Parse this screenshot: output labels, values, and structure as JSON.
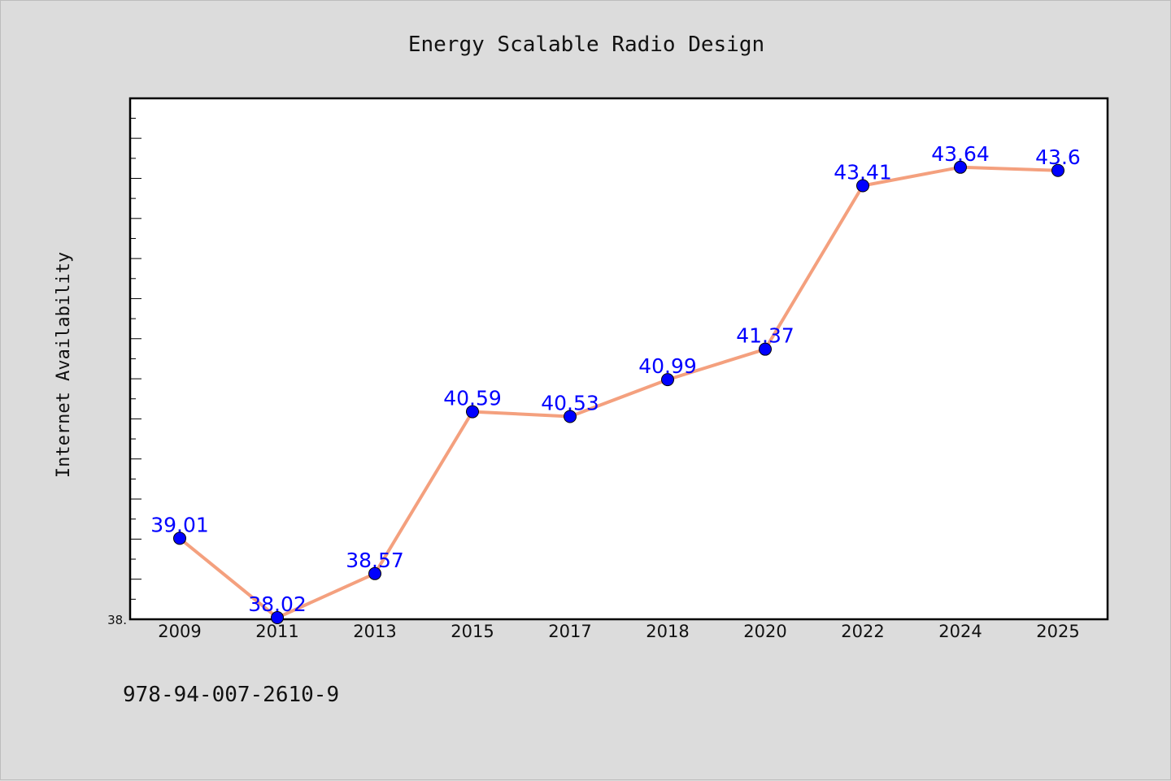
{
  "chart_data": {
    "type": "line",
    "title": "Energy Scalable Radio Design",
    "xlabel": "",
    "ylabel": "Internet Availability",
    "categories": [
      "2009",
      "2011",
      "2013",
      "2015",
      "2017",
      "2018",
      "2020",
      "2022",
      "2024",
      "2025"
    ],
    "series": [
      {
        "values": [
          39.01,
          38.02,
          38.57,
          40.59,
          40.53,
          40.99,
          41.37,
          43.41,
          43.64,
          43.6
        ],
        "labels": [
          "39.01",
          "38.02",
          "38.57",
          "40.59",
          "40.53",
          "40.99",
          "41.37",
          "43.41",
          "43.64",
          "43.6"
        ]
      }
    ],
    "ylim": [
      38.0,
      44.5
    ],
    "y_min_label": "38.",
    "grid": false,
    "line_color": "#f4a07e",
    "marker_color": "#0000ff",
    "label_color": "#0000ff"
  },
  "footer": {
    "isbn": "978-94-007-2610-9"
  }
}
